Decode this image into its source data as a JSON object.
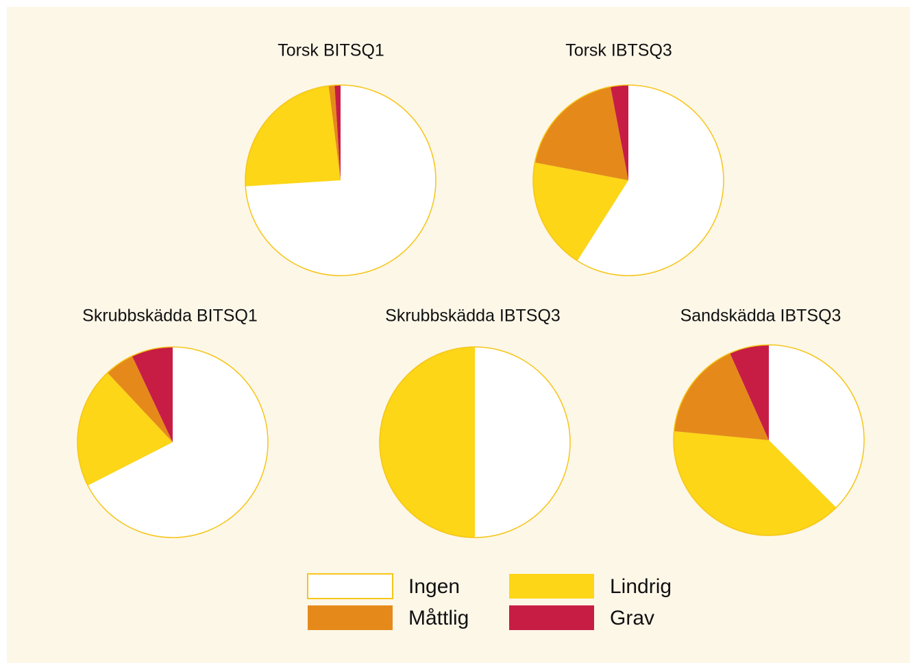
{
  "chart_data": [
    {
      "type": "pie",
      "title": "Torsk BITSQ1",
      "categories": [
        "Ingen",
        "Lindrig",
        "Måttlig",
        "Grav"
      ],
      "colors": [
        "#ffffff",
        "#fcd617",
        "#e58a1a",
        "#c71d45"
      ],
      "values": [
        74,
        24,
        1,
        1
      ]
    },
    {
      "type": "pie",
      "title": "Torsk IBTSQ3",
      "categories": [
        "Ingen",
        "Lindrig",
        "Måttlig",
        "Grav"
      ],
      "colors": [
        "#ffffff",
        "#fcd617",
        "#e58a1a",
        "#c71d45"
      ],
      "values": [
        59,
        19,
        19,
        3
      ]
    },
    {
      "type": "pie",
      "title": "Skrubbskädda BITSQ1",
      "categories": [
        "Ingen",
        "Lindrig",
        "Måttlig",
        "Grav"
      ],
      "colors": [
        "#ffffff",
        "#fcd617",
        "#e58a1a",
        "#c71d45"
      ],
      "values": [
        67.5,
        20.5,
        5,
        7
      ]
    },
    {
      "type": "pie",
      "title": "Skrubbskädda IBTSQ3",
      "categories": [
        "Ingen",
        "Lindrig",
        "Måttlig",
        "Grav"
      ],
      "colors": [
        "#ffffff",
        "#fcd617",
        "#e58a1a",
        "#c71d45"
      ],
      "values": [
        50,
        50,
        0,
        0
      ]
    },
    {
      "type": "pie",
      "title": "Sandskädda IBTSQ3",
      "categories": [
        "Ingen",
        "Lindrig",
        "Måttlig",
        "Grav"
      ],
      "colors": [
        "#ffffff",
        "#fcd617",
        "#e58a1a",
        "#c71d45"
      ],
      "values": [
        37.5,
        39,
        16.8,
        6.7
      ]
    }
  ]
}
